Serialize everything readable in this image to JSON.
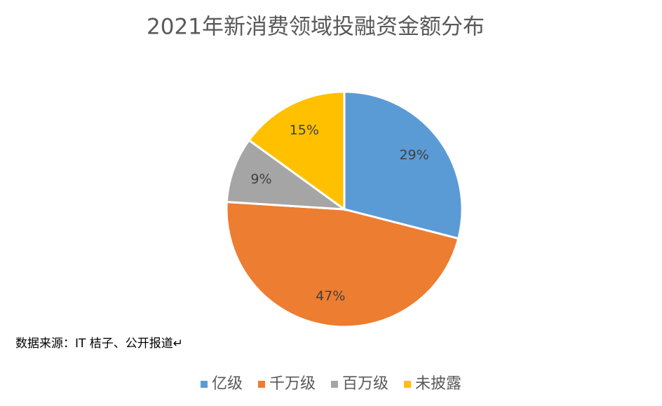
{
  "chart_data": {
    "type": "pie",
    "title": "2021年新消费领域投融资金额分布",
    "categories": [
      "亿级",
      "千万级",
      "百万级",
      "未披露"
    ],
    "values": [
      29,
      47,
      9,
      15
    ],
    "value_labels": [
      "29%",
      "47%",
      "9%",
      "15%"
    ],
    "colors": [
      "#5b9bd5",
      "#ed7d31",
      "#a5a5a5",
      "#ffc000"
    ],
    "source": "数据来源：IT 桔子、公开报道↵",
    "legend": "bottom"
  }
}
